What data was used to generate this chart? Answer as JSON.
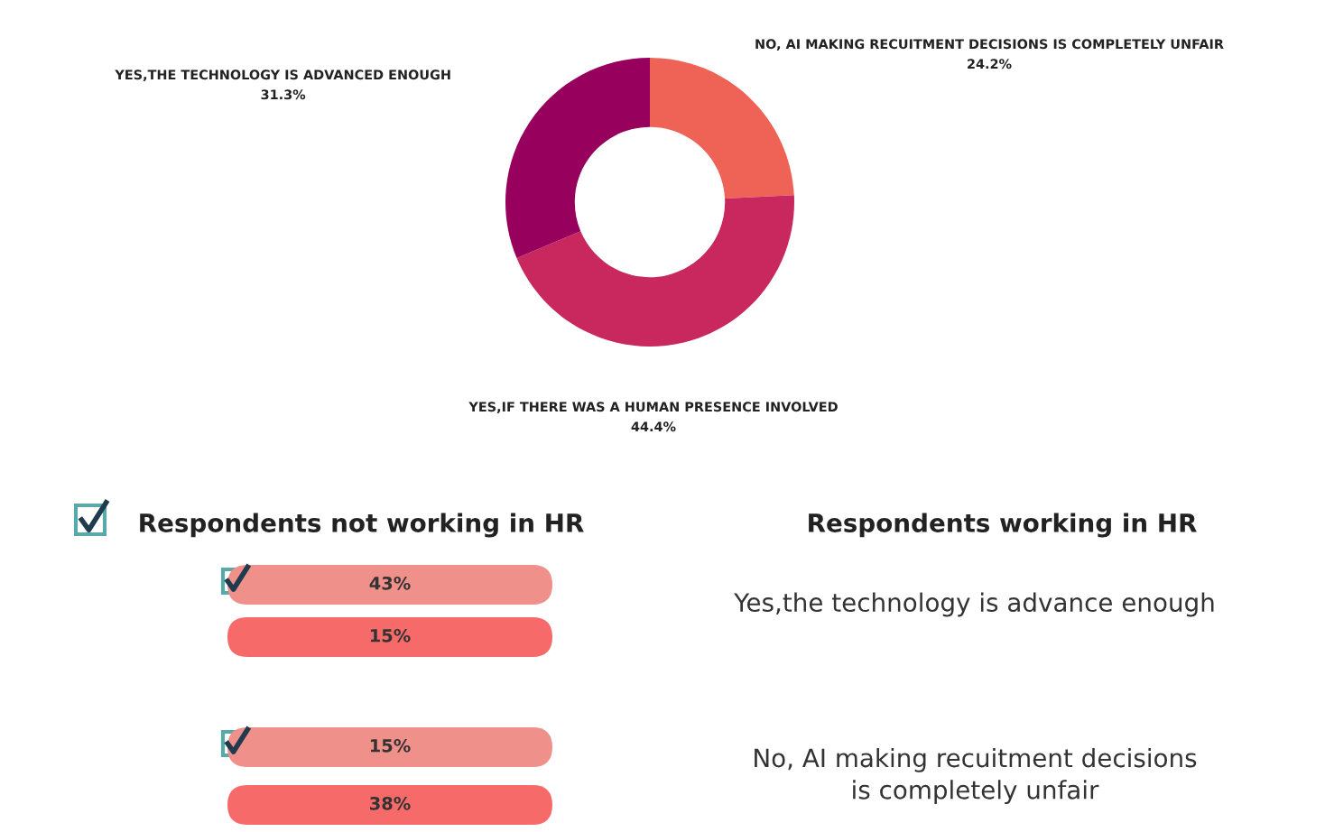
{
  "chart_data": [
    {
      "type": "donut",
      "categories": [
        "NO, AI MAKING RECUITMENT DECISIONS IS COMPLETELY UNFAIR",
        "YES,IF THERE WAS A HUMAN PRESENCE INVOLVED",
        "YES,THE TECHNOLOGY IS ADVANCED ENOUGH"
      ],
      "values": [
        24.2,
        44.4,
        31.3
      ],
      "value_labels": [
        "24.2%",
        "44.4%",
        "31.3%"
      ],
      "colors": [
        "#ef6357",
        "#c8285e",
        "#98005e"
      ]
    },
    {
      "type": "other",
      "categories": [
        "Yes,the technology is advance enough",
        "No, AI making recuitment decisions\nis completely unfair"
      ],
      "annotations": [
        "Respondents not working in HR",
        "Respondents working in HR"
      ],
      "series": [
        {
          "color": "#f0908a",
          "values": [
            43,
            15
          ],
          "value_labels": [
            "43%",
            "15%"
          ]
        },
        {
          "color": "#f76a6a",
          "values": [
            15,
            38
          ],
          "value_labels": [
            "15%",
            "38%"
          ]
        }
      ]
    }
  ]
}
